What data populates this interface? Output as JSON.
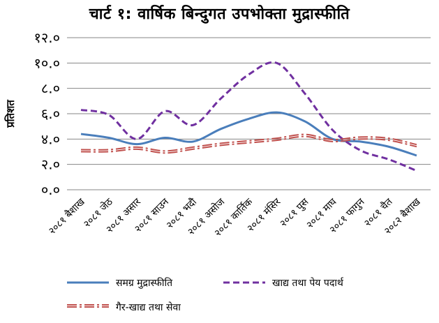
{
  "chart_data": {
    "type": "line",
    "title": "चार्ट १: वार्षिक बिन्दुगत उपभोक्ता मुद्रास्फीति",
    "ylabel": "प्रतिशत",
    "xlabel": "",
    "ylim": [
      0,
      12
    ],
    "yticks": [
      "०.०",
      "२.०",
      "४.०",
      "६.०",
      "८.०",
      "१०.०",
      "१२.०"
    ],
    "grid": true,
    "legend_position": "bottom",
    "categories": [
      "२०८१ बैशाख",
      "२०८१ जेठ",
      "२०८१ असार",
      "२०८१ साउन",
      "२०८१ भदौ",
      "२०८१ असोज",
      "२०८१ कार्तिक",
      "२०८१ मंसिर",
      "२०८१ पुस",
      "२०८१ माघ",
      "२०८१ फागुन",
      "२०८१ चैत",
      "२०८२ बैशाख"
    ],
    "series": [
      {
        "name": "समग्र मुद्रास्फीति",
        "values": [
          4.4,
          4.1,
          3.6,
          4.1,
          3.8,
          4.8,
          5.6,
          6.1,
          5.4,
          4.0,
          3.8,
          3.4,
          2.7
        ],
        "color": "#4a7ebb",
        "style": "solid"
      },
      {
        "name": "खाद्य तथा पेय पदार्थ",
        "values": [
          6.3,
          5.9,
          4.0,
          6.2,
          5.1,
          7.2,
          9.1,
          10.0,
          7.6,
          4.7,
          3.1,
          2.4,
          1.5
        ],
        "color": "#7030a0",
        "style": "dashed"
      },
      {
        "name": "गैर-खाद्य तथा सेवा",
        "values": [
          3.0,
          3.0,
          3.2,
          2.9,
          3.2,
          3.5,
          3.7,
          3.9,
          4.2,
          3.8,
          4.0,
          3.9,
          3.4
        ],
        "color": "#c0504d",
        "style": "double-dashed"
      }
    ]
  }
}
